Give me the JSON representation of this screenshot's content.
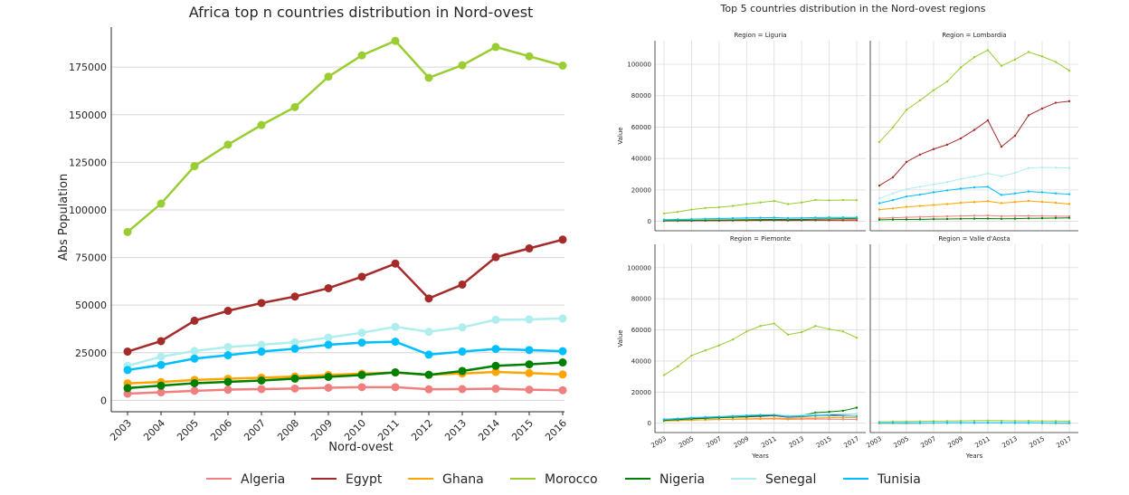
{
  "legend": {
    "placement": "bottom",
    "entries": [
      {
        "name": "Algeria",
        "color": "#f08080"
      },
      {
        "name": "Egypt",
        "color": "#a52a2a"
      },
      {
        "name": "Ghana",
        "color": "#ffa500"
      },
      {
        "name": "Morocco",
        "color": "#9acd32"
      },
      {
        "name": "Nigeria",
        "color": "#008000"
      },
      {
        "name": "Senegal",
        "color": "#afeeee"
      },
      {
        "name": "Tunisia",
        "color": "#00bfff"
      }
    ]
  },
  "chart_data": [
    {
      "type": "line",
      "title": "Africa top n countries distribution in Nord-ovest",
      "xlabel": "Nord-ovest",
      "ylabel": "Abs Population",
      "grid": "horizontal",
      "x": [
        2003,
        2004,
        2005,
        2006,
        2007,
        2008,
        2009,
        2010,
        2011,
        2012,
        2013,
        2014,
        2015,
        2016
      ],
      "x_tick_labels": [
        "2003",
        "2004",
        "2005",
        "2006",
        "2007",
        "2008",
        "2009",
        "2010",
        "2011",
        "2012",
        "2013",
        "2014",
        "2015",
        "2016"
      ],
      "ylim": [
        -6000,
        196000
      ],
      "y_ticks": [
        0,
        25000,
        50000,
        75000,
        100000,
        125000,
        150000,
        175000
      ],
      "y_tick_labels": [
        "0",
        "25000",
        "50000",
        "75000",
        "100000",
        "125000",
        "150000",
        "175000"
      ],
      "series": [
        {
          "name": "Algeria",
          "color": "#f08080",
          "values": [
            3500,
            4200,
            5000,
            5600,
            5900,
            6200,
            6600,
            6900,
            6900,
            5800,
            5900,
            6100,
            5600,
            5300
          ]
        },
        {
          "name": "Egypt",
          "color": "#a52a2a",
          "values": [
            25600,
            31100,
            41800,
            47000,
            51100,
            54500,
            58900,
            64900,
            71800,
            53500,
            60800,
            75200,
            79800,
            84400
          ]
        },
        {
          "name": "Ghana",
          "color": "#ffa500",
          "values": [
            8900,
            9600,
            10700,
            11300,
            11900,
            12500,
            13300,
            14000,
            14600,
            13400,
            14100,
            14900,
            14300,
            13600
          ]
        },
        {
          "name": "Morocco",
          "color": "#9acd32",
          "values": [
            88400,
            103300,
            123000,
            134300,
            144600,
            154000,
            170000,
            181200,
            188800,
            169400,
            176000,
            185600,
            180700,
            175800
          ]
        },
        {
          "name": "Nigeria",
          "color": "#008000",
          "values": [
            6400,
            7700,
            9000,
            9700,
            10400,
            11400,
            12300,
            13300,
            14700,
            13400,
            15400,
            18100,
            18900,
            19900
          ]
        },
        {
          "name": "Senegal",
          "color": "#afeeee",
          "values": [
            18100,
            22900,
            25900,
            28000,
            29200,
            30500,
            33000,
            35500,
            38600,
            36000,
            38300,
            42300,
            42500,
            43000
          ]
        },
        {
          "name": "Tunisia",
          "color": "#00bfff",
          "values": [
            15900,
            18600,
            21900,
            23700,
            25600,
            27100,
            29200,
            30300,
            30800,
            24000,
            25600,
            27000,
            26400,
            25800
          ]
        }
      ]
    },
    {
      "type": "line",
      "title": "Top 5 countries distribution in the Nord-ovest regions",
      "xlabel": "Years",
      "ylabel": "Value",
      "grid": "both",
      "x": [
        2003,
        2004,
        2005,
        2006,
        2007,
        2008,
        2009,
        2010,
        2011,
        2012,
        2013,
        2014,
        2015,
        2016,
        2017
      ],
      "x_tick_labels": [
        "2003",
        "2005",
        "2007",
        "2009",
        "2011",
        "2013",
        "2015",
        "2017"
      ],
      "ylim": [
        -6000,
        115000
      ],
      "y_ticks": [
        0,
        20000,
        40000,
        60000,
        80000,
        100000
      ],
      "y_tick_labels": [
        "0",
        "20000",
        "40000",
        "60000",
        "80000",
        "100000"
      ],
      "panels": [
        {
          "title": "Region = Liguria",
          "series": [
            {
              "name": "Algeria",
              "color": "#f08080",
              "values": [
                200,
                250,
                300,
                350,
                400,
                450,
                500,
                550,
                600,
                500,
                550,
                600,
                550,
                500,
                450
              ]
            },
            {
              "name": "Egypt",
              "color": "#a52a2a",
              "values": [
                300,
                350,
                400,
                450,
                500,
                550,
                600,
                650,
                700,
                600,
                650,
                750,
                800,
                850,
                900
              ]
            },
            {
              "name": "Ghana",
              "color": "#ffa500",
              "values": [
                500,
                600,
                700,
                800,
                900,
                1000,
                1100,
                1200,
                1300,
                1200,
                1300,
                1400,
                1500,
                1600,
                1700
              ]
            },
            {
              "name": "Morocco",
              "color": "#9acd32",
              "values": [
                5000,
                6000,
                7500,
                8500,
                9000,
                9800,
                11000,
                12000,
                13000,
                11000,
                12000,
                13600,
                13400,
                13600,
                13500
              ]
            },
            {
              "name": "Nigeria",
              "color": "#008000",
              "values": [
                400,
                500,
                600,
                700,
                800,
                900,
                1000,
                1100,
                1200,
                1100,
                1200,
                1400,
                1600,
                1800,
                2000
              ]
            },
            {
              "name": "Senegal",
              "color": "#afeeee",
              "values": [
                1200,
                1300,
                1400,
                1500,
                1600,
                1700,
                1800,
                1900,
                2000,
                1800,
                1900,
                2100,
                2200,
                2300,
                2400
              ]
            },
            {
              "name": "Tunisia",
              "color": "#00bfff",
              "values": [
                1000,
                1200,
                1400,
                1600,
                1800,
                2000,
                2200,
                2300,
                2400,
                2100,
                2200,
                2400,
                2500,
                2500,
                2500
              ]
            }
          ]
        },
        {
          "title": "Region = Lombardia",
          "series": [
            {
              "name": "Algeria",
              "color": "#f08080",
              "values": [
                2000,
                2300,
                2600,
                2800,
                3000,
                3200,
                3400,
                3600,
                3700,
                3300,
                3400,
                3500,
                3400,
                3300,
                3200
              ]
            },
            {
              "name": "Egypt",
              "color": "#a52a2a",
              "values": [
                22800,
                28000,
                37800,
                42500,
                46000,
                48800,
                52800,
                58200,
                64300,
                47500,
                54500,
                67500,
                71800,
                75500,
                76500
              ]
            },
            {
              "name": "Ghana",
              "color": "#ffa500",
              "values": [
                7500,
                8200,
                9200,
                9800,
                10400,
                11000,
                11800,
                12300,
                12800,
                11600,
                12300,
                13000,
                12400,
                11800,
                11000
              ]
            },
            {
              "name": "Morocco",
              "color": "#9acd32",
              "values": [
                50500,
                59800,
                71000,
                77000,
                83500,
                89000,
                98000,
                104500,
                109000,
                99000,
                103000,
                107800,
                105000,
                101500,
                96000
              ]
            },
            {
              "name": "Nigeria",
              "color": "#008000",
              "values": [
                1000,
                1100,
                1200,
                1300,
                1400,
                1500,
                1600,
                1700,
                1800,
                1600,
                1700,
                1900,
                2000,
                2100,
                2200
              ]
            },
            {
              "name": "Senegal",
              "color": "#afeeee",
              "values": [
                14500,
                17800,
                20500,
                22000,
                23500,
                25000,
                27000,
                28500,
                30500,
                28700,
                30800,
                34000,
                34300,
                34200,
                34000
              ]
            },
            {
              "name": "Tunisia",
              "color": "#00bfff",
              "values": [
                11500,
                13500,
                15800,
                17000,
                18500,
                19700,
                20800,
                21600,
                22000,
                16800,
                17800,
                19000,
                18500,
                17800,
                17300
              ]
            }
          ]
        },
        {
          "title": "Region = Piemonte",
          "series": [
            {
              "name": "Algeria",
              "color": "#f08080",
              "values": [
                1500,
                1700,
                2000,
                2200,
                2400,
                2500,
                2600,
                2700,
                2800,
                2500,
                2600,
                2700,
                2600,
                2500,
                2400
              ]
            },
            {
              "name": "Egypt",
              "color": "#a52a2a",
              "values": [
                2500,
                2800,
                3200,
                3400,
                3600,
                3800,
                4000,
                4400,
                4800,
                3800,
                4200,
                4800,
                5200,
                5600,
                6000
              ]
            },
            {
              "name": "Ghana",
              "color": "#ffa500",
              "values": [
                1500,
                1700,
                2000,
                2200,
                2400,
                2600,
                2800,
                3000,
                3200,
                3000,
                3200,
                3400,
                3500,
                3600,
                3700
              ]
            },
            {
              "name": "Morocco",
              "color": "#9acd32",
              "values": [
                31000,
                36500,
                43500,
                46800,
                50000,
                53800,
                59000,
                62500,
                64100,
                57000,
                58500,
                62500,
                60500,
                59000,
                55000
              ]
            },
            {
              "name": "Nigeria",
              "color": "#008000",
              "values": [
                1800,
                2300,
                2800,
                3100,
                3500,
                3900,
                4300,
                4800,
                5200,
                4300,
                5000,
                6800,
                7300,
                8000,
                10000
              ]
            },
            {
              "name": "Senegal",
              "color": "#afeeee",
              "values": [
                2500,
                3000,
                3500,
                3900,
                4300,
                4700,
                5100,
                5400,
                5700,
                4900,
                5200,
                5800,
                5900,
                6000,
                6000
              ]
            },
            {
              "name": "Tunisia",
              "color": "#00bfff",
              "values": [
                2500,
                3000,
                3500,
                3900,
                4200,
                4600,
                5000,
                5300,
                5400,
                4200,
                4500,
                5000,
                4800,
                4700,
                4500
              ]
            }
          ]
        },
        {
          "title": "Region = Valle d'Aosta",
          "series": [
            {
              "name": "Algeria",
              "color": "#f08080",
              "values": [
                100,
                110,
                120,
                130,
                140,
                150,
                160,
                170,
                180,
                170,
                160,
                150,
                140,
                130,
                120
              ]
            },
            {
              "name": "Egypt",
              "color": "#a52a2a",
              "values": [
                50,
                60,
                70,
                80,
                90,
                100,
                110,
                120,
                130,
                120,
                110,
                100,
                90,
                80,
                70
              ]
            },
            {
              "name": "Ghana",
              "color": "#ffa500",
              "values": [
                30,
                40,
                50,
                60,
                70,
                80,
                90,
                100,
                110,
                100,
                90,
                80,
                70,
                60,
                50
              ]
            },
            {
              "name": "Morocco",
              "color": "#9acd32",
              "values": [
                900,
                1000,
                1100,
                1200,
                1300,
                1400,
                1500,
                1600,
                1700,
                1600,
                1500,
                1500,
                1400,
                1400,
                1300
              ]
            },
            {
              "name": "Nigeria",
              "color": "#008000",
              "values": [
                40,
                50,
                60,
                70,
                80,
                90,
                100,
                110,
                120,
                110,
                100,
                90,
                80,
                70,
                60
              ]
            },
            {
              "name": "Senegal",
              "color": "#afeeee",
              "values": [
                60,
                70,
                80,
                90,
                100,
                110,
                120,
                130,
                140,
                130,
                120,
                110,
                100,
                90,
                80
              ]
            },
            {
              "name": "Tunisia",
              "color": "#00bfff",
              "values": [
                200,
                220,
                240,
                260,
                280,
                300,
                320,
                340,
                360,
                330,
                310,
                290,
                270,
                250,
                230
              ]
            }
          ]
        }
      ]
    }
  ]
}
